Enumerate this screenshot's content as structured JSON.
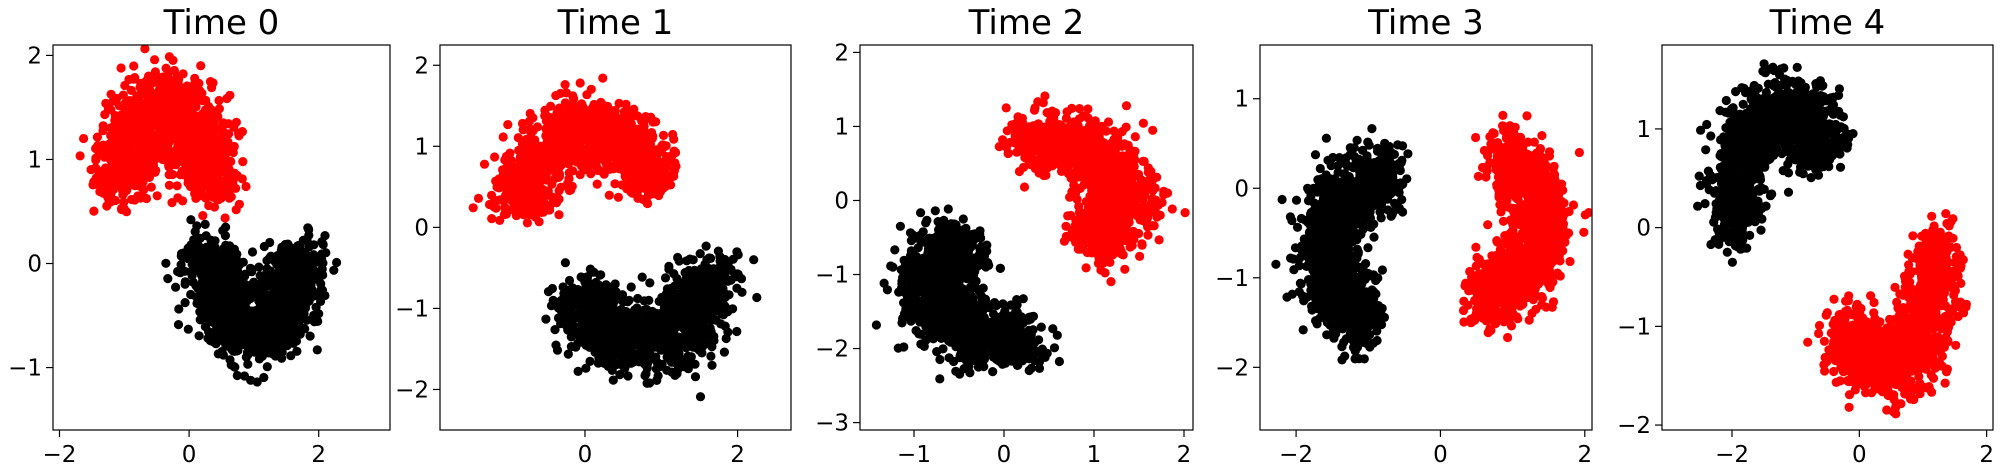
{
  "chart_data": [
    {
      "type": "scatter",
      "title": "Time 0",
      "xlim": [
        -2.1,
        3.1
      ],
      "ylim": [
        -1.6,
        2.1
      ],
      "xticks": [
        -2,
        0,
        2
      ],
      "xtick_labels": [
        "−2",
        "0",
        "2"
      ],
      "yticks": [
        -1,
        0,
        1,
        2
      ],
      "ytick_labels": [
        "−1",
        "0",
        "1",
        "2"
      ],
      "grid": false,
      "series": [
        {
          "color": "#ff0000",
          "shape": "crescent",
          "center": [
            -0.35,
            0.7
          ],
          "radius": 0.75,
          "spread": 0.33,
          "start_deg": 0,
          "end_deg": 180
        },
        {
          "color": "#000000",
          "shape": "crescent",
          "center": [
            1.0,
            0.15
          ],
          "radius": 0.75,
          "spread": 0.33,
          "start_deg": 180,
          "end_deg": 360
        }
      ]
    },
    {
      "type": "scatter",
      "title": "Time 1",
      "xlim": [
        -1.9,
        2.7
      ],
      "ylim": [
        -2.5,
        2.25
      ],
      "xticks": [
        0,
        2
      ],
      "xtick_labels": [
        "0",
        "2"
      ],
      "yticks": [
        -2,
        -1,
        0,
        1,
        2
      ],
      "ytick_labels": [
        "−2",
        "−1",
        "0",
        "1",
        "2"
      ],
      "grid": false,
      "series": [
        {
          "color": "#ff0000",
          "shape": "crescent",
          "center": [
            0.05,
            0.35
          ],
          "radius": 0.85,
          "spread": 0.33,
          "start_deg": 10,
          "end_deg": 190
        },
        {
          "color": "#000000",
          "shape": "crescent",
          "center": [
            0.75,
            -0.6
          ],
          "radius": 0.85,
          "spread": 0.33,
          "start_deg": 190,
          "end_deg": 370
        }
      ]
    },
    {
      "type": "scatter",
      "title": "Time 2",
      "xlim": [
        -1.6,
        2.1
      ],
      "ylim": [
        -3.1,
        2.1
      ],
      "xticks": [
        -1,
        0,
        1,
        2
      ],
      "xtick_labels": [
        "−1",
        "0",
        "1",
        "2"
      ],
      "yticks": [
        -3,
        -2,
        -1,
        0,
        1,
        2
      ],
      "ytick_labels": [
        "−3",
        "−2",
        "−1",
        "0",
        "1",
        "2"
      ],
      "grid": false,
      "series": [
        {
          "color": "#ff0000",
          "shape": "crescent",
          "center": [
            0.55,
            0.05
          ],
          "radius": 0.75,
          "spread": 0.32,
          "start_deg": -60,
          "end_deg": 120
        },
        {
          "color": "#000000",
          "shape": "crescent",
          "center": [
            -0.05,
            -1.15
          ],
          "radius": 0.75,
          "spread": 0.32,
          "start_deg": 120,
          "end_deg": 300
        }
      ]
    },
    {
      "type": "scatter",
      "title": "Time 3",
      "xlim": [
        -2.5,
        2.1
      ],
      "ylim": [
        -2.7,
        1.6
      ],
      "xticks": [
        -2,
        0,
        2
      ],
      "xtick_labels": [
        "−2",
        "0",
        "2"
      ],
      "yticks": [
        -2,
        -1,
        0,
        1
      ],
      "ytick_labels": [
        "−2",
        "−1",
        "0",
        "1"
      ],
      "grid": false,
      "series": [
        {
          "color": "#ff0000",
          "shape": "crescent",
          "center": [
            0.6,
            -0.4
          ],
          "radius": 0.8,
          "spread": 0.32,
          "start_deg": -100,
          "end_deg": 80
        },
        {
          "color": "#000000",
          "shape": "crescent",
          "center": [
            -0.8,
            -0.7
          ],
          "radius": 0.8,
          "spread": 0.32,
          "start_deg": 80,
          "end_deg": 260
        }
      ]
    },
    {
      "type": "scatter",
      "title": "Time 4",
      "xlim": [
        -3.1,
        2.1
      ],
      "ylim": [
        -2.05,
        1.85
      ],
      "xticks": [
        -2,
        0,
        2
      ],
      "xtick_labels": [
        "−2",
        "0",
        "2"
      ],
      "yticks": [
        -2,
        -1,
        0,
        1
      ],
      "ytick_labels": [
        "−2",
        "−1",
        "0",
        "1"
      ],
      "grid": false,
      "series": [
        {
          "color": "#ff0000",
          "shape": "crescent",
          "center": [
            0.4,
            -0.55
          ],
          "radius": 0.82,
          "spread": 0.32,
          "start_deg": -150,
          "end_deg": 30
        },
        {
          "color": "#000000",
          "shape": "crescent",
          "center": [
            -1.15,
            0.35
          ],
          "radius": 0.82,
          "spread": 0.32,
          "start_deg": 30,
          "end_deg": 210
        }
      ]
    }
  ]
}
